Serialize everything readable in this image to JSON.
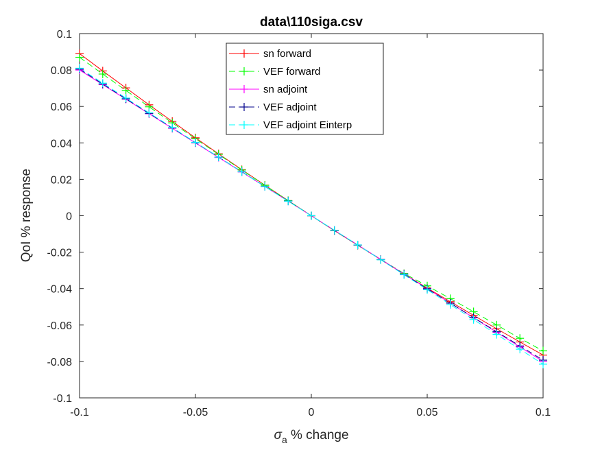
{
  "chart_data": {
    "type": "line",
    "title": "data\\110siga.csv",
    "xlabel_symbol": "σ",
    "xlabel_subscript": "a",
    "xlabel_rest": " % change",
    "ylabel": "QoI % response",
    "xlim": [
      -0.1,
      0.1
    ],
    "ylim": [
      -0.1,
      0.1
    ],
    "xticks": [
      -0.1,
      -0.05,
      0,
      0.05,
      0.1
    ],
    "xtick_labels": [
      "-0.1",
      "-0.05",
      "0",
      "0.05",
      "0.1"
    ],
    "yticks": [
      -0.1,
      -0.08,
      -0.06,
      -0.04,
      -0.02,
      0,
      0.02,
      0.04,
      0.06,
      0.08,
      0.1
    ],
    "ytick_labels": [
      "-0.1",
      "-0.08",
      "-0.06",
      "-0.04",
      "-0.02",
      "0",
      "0.02",
      "0.04",
      "0.06",
      "0.08",
      "0.1"
    ],
    "grid": false,
    "legend_position": "top-center",
    "x": [
      -0.1,
      -0.09,
      -0.08,
      -0.07,
      -0.06,
      -0.05,
      -0.04,
      -0.03,
      -0.02,
      -0.01,
      0,
      0.01,
      0.02,
      0.03,
      0.04,
      0.05,
      0.06,
      0.07,
      0.08,
      0.09,
      0.1
    ],
    "series": [
      {
        "name": "sn forward",
        "color": "#ff0000",
        "dash": "solid",
        "values": [
          0.089,
          0.0795,
          0.0702,
          0.0609,
          0.0518,
          0.0428,
          0.034,
          0.0253,
          0.0168,
          0.0083,
          0,
          -0.0082,
          -0.0162,
          -0.0241,
          -0.032,
          -0.0397,
          -0.0472,
          -0.0547,
          -0.0621,
          -0.0693,
          -0.0765
        ]
      },
      {
        "name": "VEF forward",
        "color": "#00ff00",
        "dash": "dashed",
        "values": [
          0.087,
          0.0778,
          0.0688,
          0.0598,
          0.051,
          0.0423,
          0.0337,
          0.0251,
          0.0167,
          0.0083,
          0,
          -0.0081,
          -0.0161,
          -0.024,
          -0.0317,
          -0.0385,
          -0.0455,
          -0.0527,
          -0.06,
          -0.0673,
          -0.0742
        ]
      },
      {
        "name": "sn adjoint",
        "color": "#ff00ff",
        "dash": "solid",
        "values": [
          0.08,
          0.072,
          0.064,
          0.056,
          0.048,
          0.04,
          0.032,
          0.024,
          0.016,
          0.008,
          0,
          -0.008,
          -0.016,
          -0.024,
          -0.032,
          -0.04,
          -0.048,
          -0.056,
          -0.064,
          -0.072,
          -0.08
        ]
      },
      {
        "name": "VEF adjoint",
        "color": "#00008b",
        "dash": "dashed",
        "values": [
          0.0805,
          0.0723,
          0.0642,
          0.0562,
          0.0482,
          0.0402,
          0.0322,
          0.0242,
          0.0161,
          0.0081,
          0,
          -0.0081,
          -0.0161,
          -0.0241,
          -0.0322,
          -0.0401,
          -0.048,
          -0.0559,
          -0.0637,
          -0.0715,
          -0.0793
        ]
      },
      {
        "name": "VEF adjoint Einterp",
        "color": "#00ffff",
        "dash": "dashed",
        "values": [
          0.081,
          0.0728,
          0.0646,
          0.0565,
          0.0484,
          0.0403,
          0.0322,
          0.0241,
          0.016,
          0.008,
          0,
          -0.008,
          -0.016,
          -0.0242,
          -0.0324,
          -0.0406,
          -0.0488,
          -0.057,
          -0.0652,
          -0.0733,
          -0.0815
        ]
      }
    ]
  }
}
